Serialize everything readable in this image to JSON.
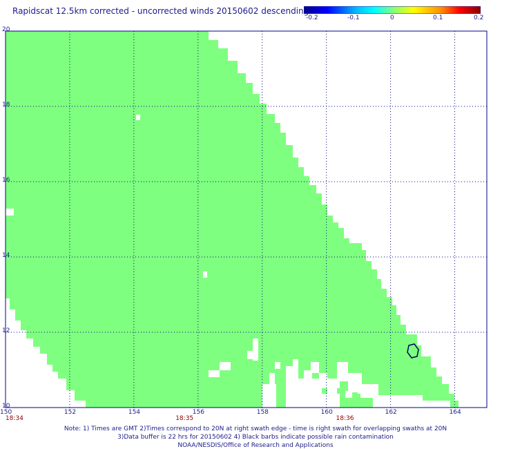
{
  "title": "Rapidscat 12.5km corrected - uncorrected winds 20150602 descending",
  "colorbar": {
    "ticks": [
      "-0.2",
      "-0.1",
      "0",
      "0.1",
      "0.2"
    ],
    "colors": [
      "#00008b",
      "#0000ff",
      "#00bfff",
      "#00ffff",
      "#7fff7f",
      "#ffff00",
      "#ff8c00",
      "#ff0000",
      "#8b0000"
    ]
  },
  "map": {
    "lon_range": [
      150,
      165
    ],
    "lat_range": [
      10,
      20
    ],
    "x_ticks": [
      "150",
      "152",
      "154",
      "156",
      "158",
      "160",
      "162",
      "164"
    ],
    "y_ticks": [
      "20",
      "18",
      "16",
      "14",
      "12",
      "10"
    ],
    "swath_color": "#7fff7f",
    "grid_color": "#00008b",
    "times": [
      {
        "label": "18:34",
        "lon": 150.3
      },
      {
        "label": "18:35",
        "lon": 155.6
      },
      {
        "label": "18:36",
        "lon": 160.6
      }
    ]
  },
  "notes": [
    "Note: 1) Times are GMT 2)Times correspond to 20N at right swath edge - time is right swath for overlapping swaths at 20N",
    "3)Data buffer is 22 hrs for 20150602 4) Black barbs indicate possible rain contamination",
    "NOAA/NESDIS/Office of Research and Applications"
  ]
}
